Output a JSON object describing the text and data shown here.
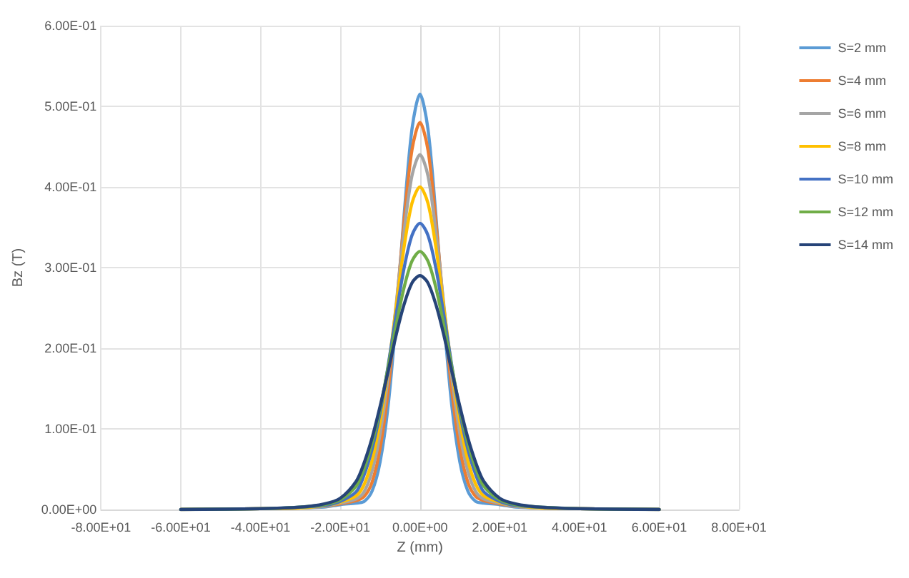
{
  "chart_data": {
    "type": "line",
    "xlabel": "Z (mm)",
    "ylabel": "Bz (T)",
    "x": [
      -60,
      -40,
      -30,
      -24,
      -20,
      -16,
      -14,
      -12,
      -10,
      -8,
      -6,
      -4,
      -2,
      0,
      2,
      4,
      6,
      8,
      10,
      12,
      14,
      16,
      20,
      24,
      30,
      40,
      60
    ],
    "series": [
      {
        "name": "S=2 mm",
        "color": "#5b9bd5",
        "values": [
          0,
          0.001,
          0.002,
          0.003,
          0.006,
          0.008,
          0.01,
          0.023,
          0.059,
          0.128,
          0.236,
          0.364,
          0.472,
          0.515,
          0.472,
          0.364,
          0.236,
          0.128,
          0.059,
          0.023,
          0.01,
          0.008,
          0.006,
          0.003,
          0.002,
          0.001,
          0
        ]
      },
      {
        "name": "S=4 mm",
        "color": "#ed7d31",
        "values": [
          0,
          0.001,
          0.002,
          0.004,
          0.007,
          0.011,
          0.016,
          0.034,
          0.076,
          0.147,
          0.247,
          0.357,
          0.446,
          0.48,
          0.446,
          0.357,
          0.247,
          0.147,
          0.076,
          0.034,
          0.016,
          0.011,
          0.007,
          0.004,
          0.002,
          0.001,
          0
        ]
      },
      {
        "name": "S=6 mm",
        "color": "#a5a5a5",
        "values": [
          0,
          0.001,
          0.002,
          0.004,
          0.008,
          0.013,
          0.022,
          0.048,
          0.094,
          0.164,
          0.253,
          0.344,
          0.414,
          0.44,
          0.414,
          0.344,
          0.253,
          0.164,
          0.094,
          0.048,
          0.022,
          0.013,
          0.008,
          0.004,
          0.002,
          0.001,
          0
        ]
      },
      {
        "name": "S=8 mm",
        "color": "#ffc000",
        "values": [
          0,
          0.001,
          0.002,
          0.005,
          0.009,
          0.017,
          0.031,
          0.061,
          0.109,
          0.174,
          0.25,
          0.325,
          0.38,
          0.4,
          0.38,
          0.325,
          0.25,
          0.174,
          0.109,
          0.061,
          0.031,
          0.017,
          0.009,
          0.005,
          0.002,
          0.001,
          0
        ]
      },
      {
        "name": "S=10 mm",
        "color": "#4472c4",
        "values": [
          0,
          0.001,
          0.003,
          0.005,
          0.01,
          0.022,
          0.043,
          0.075,
          0.12,
          0.178,
          0.241,
          0.299,
          0.34,
          0.355,
          0.34,
          0.299,
          0.241,
          0.178,
          0.12,
          0.075,
          0.043,
          0.022,
          0.01,
          0.005,
          0.003,
          0.001,
          0
        ]
      },
      {
        "name": "S=12 mm",
        "color": "#70ad47",
        "values": [
          0,
          0.001,
          0.003,
          0.006,
          0.012,
          0.029,
          0.051,
          0.083,
          0.125,
          0.176,
          0.228,
          0.275,
          0.308,
          0.32,
          0.308,
          0.275,
          0.228,
          0.176,
          0.125,
          0.083,
          0.051,
          0.029,
          0.012,
          0.006,
          0.003,
          0.001,
          0
        ]
      },
      {
        "name": "S=14 mm",
        "color": "#264478",
        "values": [
          0,
          0.001,
          0.003,
          0.007,
          0.014,
          0.035,
          0.058,
          0.089,
          0.128,
          0.171,
          0.216,
          0.254,
          0.281,
          0.29,
          0.281,
          0.254,
          0.216,
          0.171,
          0.128,
          0.089,
          0.058,
          0.035,
          0.014,
          0.007,
          0.003,
          0.001,
          0
        ]
      }
    ],
    "xlim": [
      -80,
      80
    ],
    "xticks": [
      {
        "value": -80,
        "label": "-8.00E+01"
      },
      {
        "value": -60,
        "label": "-6.00E+01"
      },
      {
        "value": -40,
        "label": "-4.00E+01"
      },
      {
        "value": -20,
        "label": "-2.00E+01"
      },
      {
        "value": 0,
        "label": "0.00E+00"
      },
      {
        "value": 20,
        "label": "2.00E+01"
      },
      {
        "value": 40,
        "label": "4.00E+01"
      },
      {
        "value": 60,
        "label": "6.00E+01"
      },
      {
        "value": 80,
        "label": "8.00E+01"
      }
    ],
    "ylim": [
      0,
      0.6
    ],
    "yticks": [
      {
        "value": 0,
        "label": "0.00E+00"
      },
      {
        "value": 0.1,
        "label": "1.00E-01"
      },
      {
        "value": 0.2,
        "label": "2.00E-01"
      },
      {
        "value": 0.3,
        "label": "3.00E-01"
      },
      {
        "value": 0.4,
        "label": "4.00E-01"
      },
      {
        "value": 0.5,
        "label": "5.00E-01"
      },
      {
        "value": 0.6,
        "label": "6.00E-01"
      }
    ],
    "grid": true,
    "legend": "right",
    "marker": "none",
    "line_style": "solid"
  }
}
